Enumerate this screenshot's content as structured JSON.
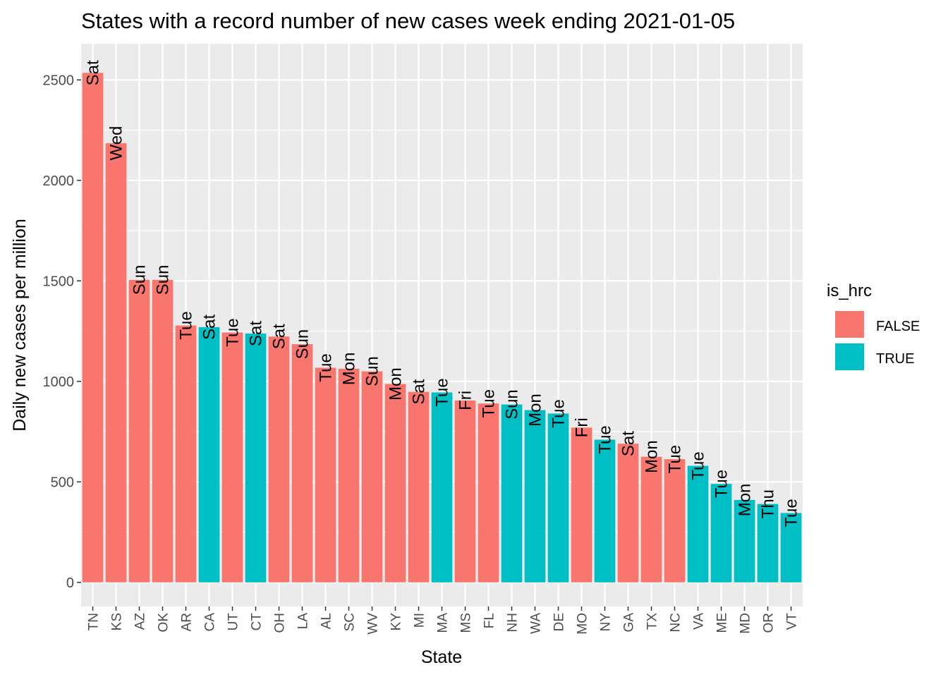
{
  "chart_data": {
    "type": "bar",
    "title": "States with a record number of new cases week ending 2021-01-05",
    "xlabel": "State",
    "ylabel": "Daily new cases per million",
    "ylim": [
      -120,
      2680
    ],
    "yticks": [
      0,
      500,
      1000,
      1500,
      2000,
      2500
    ],
    "grid": true,
    "legend": {
      "title": "is_hrc",
      "placement": "right",
      "entries": [
        {
          "label": "FALSE",
          "color": "#F8766D"
        },
        {
          "label": "TRUE",
          "color": "#00BFC4"
        }
      ]
    },
    "categories": [
      "TN",
      "KS",
      "AZ",
      "OK",
      "AR",
      "CA",
      "UT",
      "CT",
      "OH",
      "LA",
      "AL",
      "SC",
      "WV",
      "KY",
      "MI",
      "MA",
      "MS",
      "FL",
      "NH",
      "WA",
      "DE",
      "MO",
      "NY",
      "GA",
      "TX",
      "NC",
      "VA",
      "ME",
      "MD",
      "OR",
      "VT"
    ],
    "values": [
      2535,
      2185,
      1505,
      1505,
      1278,
      1270,
      1243,
      1238,
      1223,
      1185,
      1068,
      1063,
      1050,
      987,
      948,
      945,
      905,
      890,
      885,
      857,
      840,
      770,
      710,
      690,
      625,
      613,
      580,
      490,
      410,
      390,
      345
    ],
    "is_hrc": [
      "FALSE",
      "FALSE",
      "FALSE",
      "FALSE",
      "FALSE",
      "TRUE",
      "FALSE",
      "TRUE",
      "FALSE",
      "FALSE",
      "FALSE",
      "FALSE",
      "FALSE",
      "FALSE",
      "FALSE",
      "TRUE",
      "FALSE",
      "FALSE",
      "TRUE",
      "TRUE",
      "TRUE",
      "FALSE",
      "TRUE",
      "FALSE",
      "FALSE",
      "FALSE",
      "TRUE",
      "TRUE",
      "TRUE",
      "TRUE",
      "TRUE"
    ],
    "labels": [
      "Sat",
      "Wed",
      "Sun",
      "Sun",
      "Tue",
      "Sat",
      "Tue",
      "Sat",
      "Sat",
      "Sun",
      "Tue",
      "Mon",
      "Sun",
      "Mon",
      "Sat",
      "Tue",
      "Fri",
      "Tue",
      "Sun",
      "Mon",
      "Tue",
      "Fri",
      "Tue",
      "Sat",
      "Mon",
      "Tue",
      "Tue",
      "Tue",
      "Mon",
      "Thu",
      "Tue"
    ]
  }
}
